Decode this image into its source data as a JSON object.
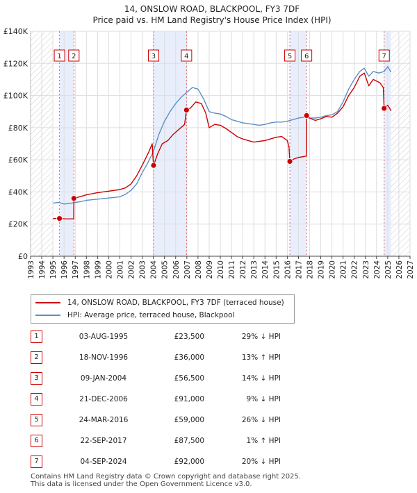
{
  "chart_data": {
    "type": "line",
    "title": "14, ONSLOW ROAD, BLACKPOOL, FY3 7DF",
    "subtitle": "Price paid vs. HM Land Registry's House Price Index (HPI)",
    "xlim": [
      1993,
      2027
    ],
    "ylim": [
      0,
      140000
    ],
    "x_ticks": [
      "1993",
      "1994",
      "1995",
      "1996",
      "1997",
      "1998",
      "1999",
      "2000",
      "2001",
      "2002",
      "2003",
      "2004",
      "2005",
      "2006",
      "2007",
      "2008",
      "2009",
      "2010",
      "2011",
      "2012",
      "2013",
      "2014",
      "2015",
      "2016",
      "2017",
      "2018",
      "2019",
      "2020",
      "2021",
      "2022",
      "2023",
      "2024",
      "2025",
      "2026",
      "2027"
    ],
    "y_ticks": [
      {
        "value": 0,
        "label": "£0"
      },
      {
        "value": 20000,
        "label": "£20K"
      },
      {
        "value": 40000,
        "label": "£40K"
      },
      {
        "value": 60000,
        "label": "£60K"
      },
      {
        "value": 80000,
        "label": "£80K"
      },
      {
        "value": 100000,
        "label": "£100K"
      },
      {
        "value": 120000,
        "label": "£120K"
      },
      {
        "value": 140000,
        "label": "£140K"
      }
    ],
    "grid": true,
    "hatched_before": 1995.0,
    "hatched_after": 2025.3,
    "highlight_spans": [
      [
        1995.59,
        1996.88
      ],
      [
        2004.02,
        2006.97
      ],
      [
        2016.23,
        2017.73
      ],
      [
        2024.68,
        2025.3
      ]
    ],
    "series": [
      {
        "name": "14, ONSLOW ROAD, BLACKPOOL, FY3 7DF (terraced house)",
        "color": "#cc0000",
        "points": [
          [
            1995.0,
            23400
          ],
          [
            1995.59,
            23500
          ],
          [
            1996.2,
            23200
          ],
          [
            1996.87,
            23300
          ],
          [
            1996.88,
            36000
          ],
          [
            1997.5,
            37200
          ],
          [
            1998,
            38200
          ],
          [
            1999,
            39600
          ],
          [
            2000,
            40500
          ],
          [
            2001,
            41500
          ],
          [
            2001.5,
            42500
          ],
          [
            2002,
            45000
          ],
          [
            2002.5,
            50000
          ],
          [
            2003,
            56500
          ],
          [
            2003.6,
            65000
          ],
          [
            2003.9,
            70000
          ],
          [
            2004.0,
            58000
          ],
          [
            2004.02,
            56500
          ],
          [
            2004.4,
            64000
          ],
          [
            2004.8,
            70000
          ],
          [
            2005.3,
            72000
          ],
          [
            2005.8,
            76000
          ],
          [
            2006.3,
            79000
          ],
          [
            2006.8,
            82000
          ],
          [
            2006.97,
            91000
          ],
          [
            2007.3,
            92000
          ],
          [
            2007.8,
            96000
          ],
          [
            2008.3,
            95000
          ],
          [
            2008.7,
            89000
          ],
          [
            2009.0,
            80000
          ],
          [
            2009.5,
            82000
          ],
          [
            2010,
            81500
          ],
          [
            2010.5,
            79500
          ],
          [
            2011,
            77000
          ],
          [
            2011.5,
            74500
          ],
          [
            2012,
            73000
          ],
          [
            2012.5,
            72000
          ],
          [
            2013,
            71000
          ],
          [
            2013.5,
            71500
          ],
          [
            2014,
            72000
          ],
          [
            2014.5,
            73000
          ],
          [
            2015,
            74000
          ],
          [
            2015.5,
            74500
          ],
          [
            2016.0,
            72000
          ],
          [
            2016.15,
            68000
          ],
          [
            2016.23,
            59000
          ],
          [
            2016.6,
            60500
          ],
          [
            2017.0,
            61500
          ],
          [
            2017.5,
            62000
          ],
          [
            2017.72,
            62500
          ],
          [
            2017.73,
            87500
          ],
          [
            2018,
            86000
          ],
          [
            2018.5,
            84500
          ],
          [
            2019,
            85500
          ],
          [
            2019.5,
            87000
          ],
          [
            2020,
            86500
          ],
          [
            2020.5,
            89000
          ],
          [
            2021,
            93000
          ],
          [
            2021.5,
            100000
          ],
          [
            2022,
            105000
          ],
          [
            2022.5,
            112000
          ],
          [
            2022.9,
            114000
          ],
          [
            2023.3,
            106000
          ],
          [
            2023.7,
            110000
          ],
          [
            2024.3,
            108000
          ],
          [
            2024.6,
            105000
          ],
          [
            2024.68,
            92000
          ],
          [
            2025.0,
            94000
          ],
          [
            2025.3,
            90500
          ]
        ]
      },
      {
        "name": "HPI: Average price, terraced house, Blackpool",
        "color": "#5b8ec6",
        "points": [
          [
            1995.0,
            33000
          ],
          [
            1995.5,
            33500
          ],
          [
            1996,
            32500
          ],
          [
            1996.5,
            32800
          ],
          [
            1997,
            33500
          ],
          [
            1997.5,
            34000
          ],
          [
            1998,
            34800
          ],
          [
            1999,
            35500
          ],
          [
            2000,
            36200
          ],
          [
            2001,
            37000
          ],
          [
            2001.5,
            38500
          ],
          [
            2002,
            41000
          ],
          [
            2002.5,
            45000
          ],
          [
            2003,
            52000
          ],
          [
            2003.5,
            58000
          ],
          [
            2004,
            65000
          ],
          [
            2004.5,
            76000
          ],
          [
            2005,
            84000
          ],
          [
            2005.5,
            90000
          ],
          [
            2006,
            95000
          ],
          [
            2006.5,
            99000
          ],
          [
            2007,
            102000
          ],
          [
            2007.5,
            105000
          ],
          [
            2008,
            104000
          ],
          [
            2008.5,
            98000
          ],
          [
            2009,
            90000
          ],
          [
            2009.5,
            89000
          ],
          [
            2010,
            88500
          ],
          [
            2010.5,
            87000
          ],
          [
            2011,
            85000
          ],
          [
            2011.5,
            84000
          ],
          [
            2012,
            83000
          ],
          [
            2012.5,
            82500
          ],
          [
            2013,
            82000
          ],
          [
            2013.5,
            81500
          ],
          [
            2014,
            82000
          ],
          [
            2014.5,
            83000
          ],
          [
            2015,
            83500
          ],
          [
            2015.5,
            83500
          ],
          [
            2016,
            84000
          ],
          [
            2016.5,
            85000
          ],
          [
            2017,
            86000
          ],
          [
            2017.5,
            86500
          ],
          [
            2018,
            86000
          ],
          [
            2018.5,
            86000
          ],
          [
            2019,
            86500
          ],
          [
            2019.5,
            87500
          ],
          [
            2020,
            88000
          ],
          [
            2020.5,
            90000
          ],
          [
            2021,
            96000
          ],
          [
            2021.5,
            104000
          ],
          [
            2022,
            110000
          ],
          [
            2022.5,
            115000
          ],
          [
            2022.9,
            117000
          ],
          [
            2023.3,
            112000
          ],
          [
            2023.7,
            115000
          ],
          [
            2024.2,
            114000
          ],
          [
            2024.68,
            115000
          ],
          [
            2025.0,
            118000
          ],
          [
            2025.3,
            114500
          ]
        ]
      }
    ],
    "sales": [
      {
        "label": "1",
        "x": 1995.59,
        "price": 23500,
        "date": "03-AUG-1995",
        "price_text": "£23,500",
        "hpi_text": "29% ↓ HPI"
      },
      {
        "label": "2",
        "x": 1996.88,
        "price": 36000,
        "date": "18-NOV-1996",
        "price_text": "£36,000",
        "hpi_text": "13% ↑ HPI"
      },
      {
        "label": "3",
        "x": 2004.02,
        "price": 56500,
        "date": "09-JAN-2004",
        "price_text": "£56,500",
        "hpi_text": "14% ↓ HPI"
      },
      {
        "label": "4",
        "x": 2006.97,
        "price": 91000,
        "date": "21-DEC-2006",
        "price_text": "£91,000",
        "hpi_text": "9% ↓ HPI"
      },
      {
        "label": "5",
        "x": 2016.23,
        "price": 59000,
        "date": "24-MAR-2016",
        "price_text": "£59,000",
        "hpi_text": "26% ↓ HPI"
      },
      {
        "label": "6",
        "x": 2017.73,
        "price": 87500,
        "date": "22-SEP-2017",
        "price_text": "£87,500",
        "hpi_text": "1% ↑ HPI"
      },
      {
        "label": "7",
        "x": 2024.68,
        "price": 92000,
        "date": "04-SEP-2024",
        "price_text": "£92,000",
        "hpi_text": "20% ↓ HPI"
      }
    ]
  },
  "legend": {
    "property_label": "14, ONSLOW ROAD, BLACKPOOL, FY3 7DF (terraced house)",
    "hpi_label": "HPI: Average price, terraced house, Blackpool"
  },
  "footer": {
    "line1": "Contains HM Land Registry data © Crown copyright and database right 2025.",
    "line2": "This data is licensed under the Open Government Licence v3.0."
  },
  "colors": {
    "property": "#cc0000",
    "hpi": "#5b8ec6",
    "span": "#e8eefb",
    "hatch": "#cccccc"
  }
}
